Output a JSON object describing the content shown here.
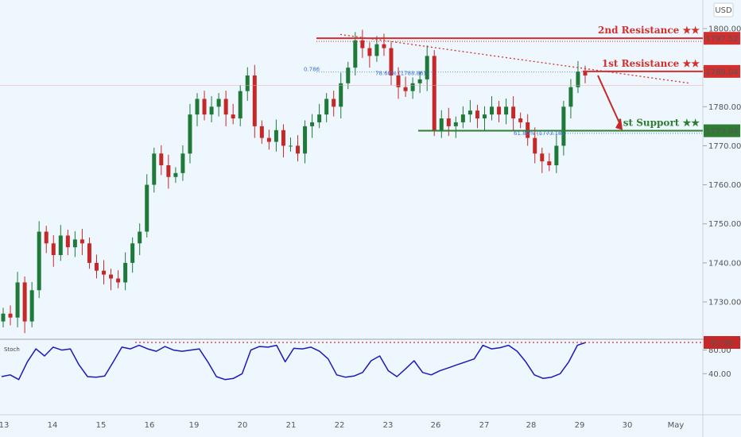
{
  "chart_data": {
    "type": "candlestick",
    "currency": "USD",
    "price_axis_ticks": [
      1730,
      1740,
      1750,
      1760,
      1770,
      1780,
      1790,
      1800
    ],
    "price_axis_labels": [
      "1730.00",
      "1740.00",
      "1750.00",
      "1760.00",
      "1770.00",
      "1780.00",
      "",
      "1800.00"
    ],
    "price_range": [
      1722,
      1804
    ],
    "date_labels": [
      "13",
      "14",
      "15",
      "16",
      "19",
      "20",
      "21",
      "22",
      "23",
      "26",
      "27",
      "28",
      "29",
      "30",
      "May"
    ],
    "levels": [
      {
        "name": "2nd Resistance ★★",
        "value": 1797.52,
        "label": "1797.52",
        "color": "#d32f2f"
      },
      {
        "name": "1st Resistance ★★",
        "value": 1789.04,
        "label": "1789.04",
        "color": "#d32f2f"
      },
      {
        "name": "1st Support ★★",
        "value": 1773.84,
        "label": "1773.84",
        "color": "#2e7d32"
      }
    ],
    "fib_labels": {
      "fib_0786": "0.786",
      "fib_786": "78.60% (1788.86)",
      "fib_618": "61.80% (1773.18)"
    },
    "candles_close": [
      1727,
      1726,
      1735,
      1725,
      1733,
      1748,
      1745,
      1742,
      1747,
      1744,
      1746,
      1745,
      1740,
      1738,
      1737,
      1736,
      1735,
      1740,
      1745,
      1748,
      1760,
      1768,
      1765,
      1762,
      1763,
      1768,
      1778,
      1782,
      1778,
      1780,
      1782,
      1778,
      1777,
      1784,
      1788,
      1775,
      1772,
      1771,
      1774,
      1770,
      1770,
      1768,
      1775,
      1776,
      1778,
      1782,
      1780,
      1786,
      1790,
      1797,
      1795,
      1793,
      1796,
      1795,
      1788,
      1785,
      1784,
      1786,
      1787,
      1793,
      1774,
      1777,
      1775,
      1776,
      1778,
      1779,
      1777,
      1778,
      1780,
      1778,
      1780,
      1777,
      1776,
      1772,
      1768,
      1766,
      1765,
      1770,
      1780,
      1785,
      1789,
      1788
    ],
    "stochastic": {
      "name": "Stoch",
      "value": 92.9,
      "value_label": "92.90",
      "axis_labels": [
        "80.00",
        "40.00"
      ],
      "values": [
        35,
        38,
        30,
        60,
        82,
        70,
        85,
        80,
        82,
        55,
        35,
        34,
        36,
        60,
        85,
        82,
        88,
        82,
        78,
        86,
        80,
        78,
        80,
        82,
        60,
        35,
        30,
        32,
        40,
        80,
        86,
        85,
        88,
        60,
        83,
        82,
        85,
        78,
        65,
        38,
        34,
        36,
        42,
        62,
        70,
        45,
        35,
        48,
        62,
        42,
        38,
        45,
        50,
        55,
        60,
        65,
        88,
        82,
        84,
        88,
        78,
        60,
        38,
        32,
        34,
        40,
        60,
        88,
        92.9
      ]
    }
  }
}
